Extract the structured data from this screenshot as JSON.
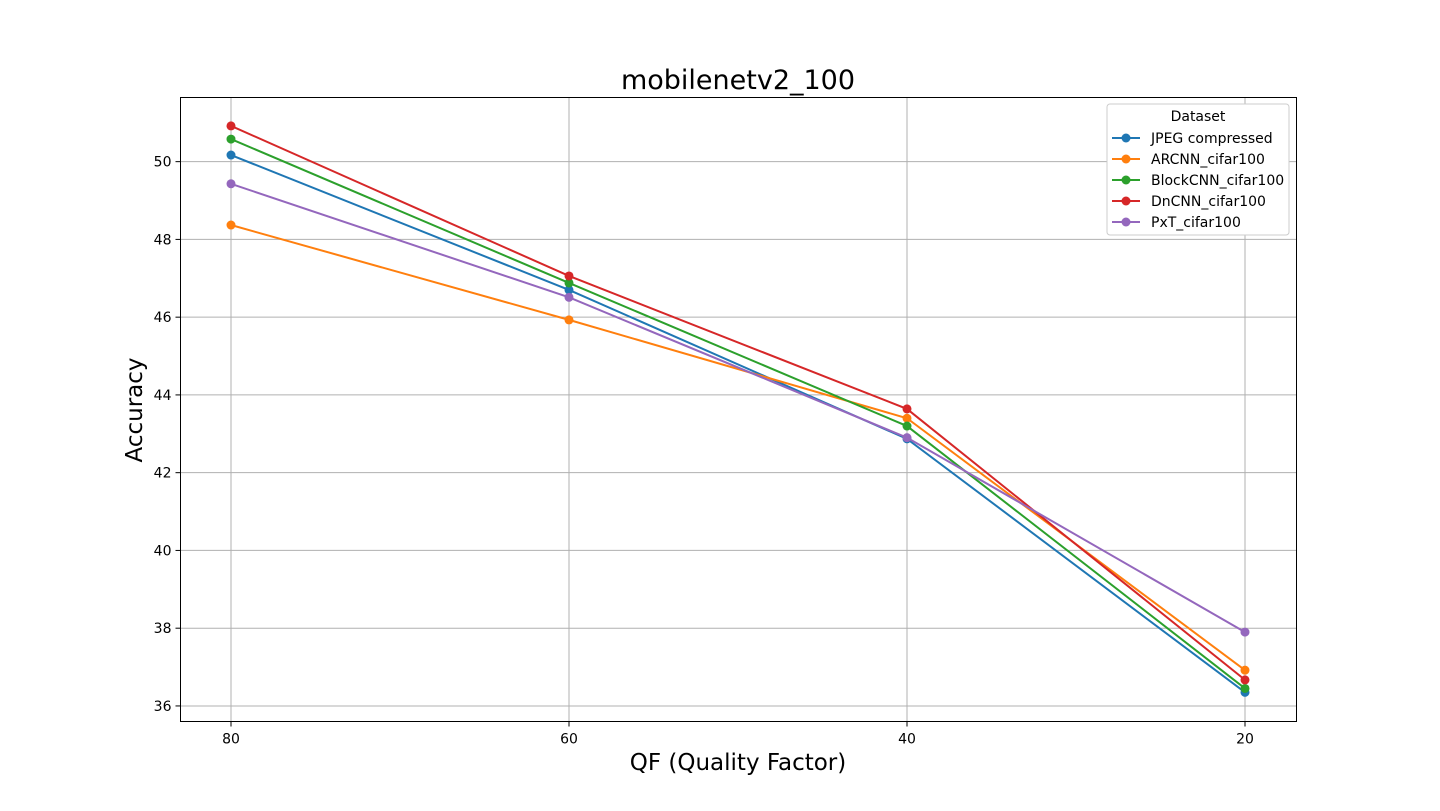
{
  "chart_data": {
    "type": "line",
    "title": "mobilenetv2_100",
    "xlabel": "QF (Quality Factor)",
    "ylabel": "Accuracy",
    "categories": [
      "80",
      "60",
      "40",
      "20"
    ],
    "y_ticks": [
      "36",
      "38",
      "40",
      "42",
      "44",
      "46",
      "48",
      "50"
    ],
    "ylim": [
      35.6,
      51.65
    ],
    "grid": true,
    "legend": {
      "title": "Dataset",
      "placement": "top-right"
    },
    "series": [
      {
        "name": "JPEG compressed",
        "color": "#1f77b4",
        "values": [
          50.17,
          46.7,
          42.87,
          36.35
        ]
      },
      {
        "name": "ARCNN_cifar100",
        "color": "#ff7f0e",
        "values": [
          48.37,
          45.93,
          43.4,
          36.92
        ]
      },
      {
        "name": "BlockCNN_cifar100",
        "color": "#2ca02c",
        "values": [
          50.58,
          46.88,
          43.2,
          36.45
        ]
      },
      {
        "name": "DnCNN_cifar100",
        "color": "#d62728",
        "values": [
          50.92,
          47.06,
          43.64,
          36.67
        ]
      },
      {
        "name": "PxT_cifar100",
        "color": "#9467bd",
        "values": [
          49.43,
          46.51,
          42.9,
          37.9
        ]
      }
    ]
  }
}
